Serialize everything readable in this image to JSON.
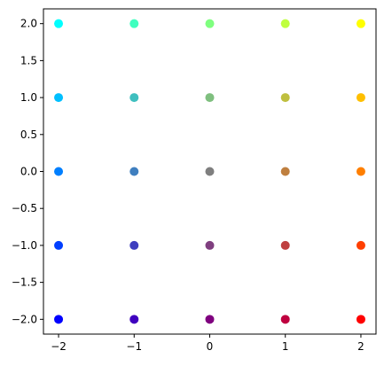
{
  "chart_data": {
    "type": "scatter",
    "title": "",
    "xlabel": "",
    "ylabel": "",
    "xlim": [
      -2.2,
      2.2
    ],
    "ylim": [
      -2.2,
      2.2
    ],
    "grid": false,
    "legend": "none",
    "x_ticks": [
      -2,
      -1,
      0,
      1,
      2
    ],
    "x_tick_labels": [
      "−2",
      "−1",
      "0",
      "1",
      "2"
    ],
    "y_ticks": [
      -2.0,
      -1.5,
      -1.0,
      -0.5,
      0.0,
      0.5,
      1.0,
      1.5,
      2.0
    ],
    "y_tick_labels": [
      "−2.0",
      "−1.5",
      "−1.0",
      "−0.5",
      "0.0",
      "0.5",
      "1.0",
      "1.5",
      "2.0"
    ],
    "points": [
      {
        "x": -2,
        "y": 2,
        "color": "#00ffff"
      },
      {
        "x": -1,
        "y": 2,
        "color": "#3fffbf"
      },
      {
        "x": 0,
        "y": 2,
        "color": "#7fff7f"
      },
      {
        "x": 1,
        "y": 2,
        "color": "#bfff3f"
      },
      {
        "x": 2,
        "y": 2,
        "color": "#ffff00"
      },
      {
        "x": -2,
        "y": 1,
        "color": "#00bfff"
      },
      {
        "x": -1,
        "y": 1,
        "color": "#3fbfbf"
      },
      {
        "x": 0,
        "y": 1,
        "color": "#7fbf7f"
      },
      {
        "x": 1,
        "y": 1,
        "color": "#bfbf3f"
      },
      {
        "x": 2,
        "y": 1,
        "color": "#ffbf00"
      },
      {
        "x": -2,
        "y": 0,
        "color": "#007fff"
      },
      {
        "x": -1,
        "y": 0,
        "color": "#3f7fbf"
      },
      {
        "x": 0,
        "y": 0,
        "color": "#7f7f7f"
      },
      {
        "x": 1,
        "y": 0,
        "color": "#bf7f3f"
      },
      {
        "x": 2,
        "y": 0,
        "color": "#ff7f00"
      },
      {
        "x": -2,
        "y": -1,
        "color": "#003fff"
      },
      {
        "x": -1,
        "y": -1,
        "color": "#3f3fbf"
      },
      {
        "x": 0,
        "y": -1,
        "color": "#7f3f7f"
      },
      {
        "x": 1,
        "y": -1,
        "color": "#bf3f3f"
      },
      {
        "x": 2,
        "y": -1,
        "color": "#ff3f00"
      },
      {
        "x": -2,
        "y": -2,
        "color": "#0000ff"
      },
      {
        "x": -1,
        "y": -2,
        "color": "#3f00bf"
      },
      {
        "x": 0,
        "y": -2,
        "color": "#7f007f"
      },
      {
        "x": 1,
        "y": -2,
        "color": "#bf003f"
      },
      {
        "x": 2,
        "y": -2,
        "color": "#ff0000"
      }
    ]
  }
}
